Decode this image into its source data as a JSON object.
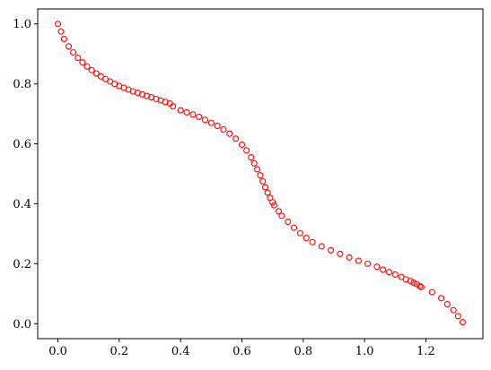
{
  "chart_data": {
    "type": "scatter",
    "color": "#ff0000",
    "x": [
      0,
      0.01,
      0.02,
      0.035,
      0.05,
      0.065,
      0.08,
      0.095,
      0.11,
      0.125,
      0.14,
      0.155,
      0.17,
      0.185,
      0.2,
      0.215,
      0.23,
      0.245,
      0.26,
      0.275,
      0.29,
      0.305,
      0.32,
      0.335,
      0.35,
      0.365,
      0.375,
      0.4,
      0.42,
      0.44,
      0.46,
      0.48,
      0.5,
      0.52,
      0.54,
      0.56,
      0.58,
      0.6,
      0.615,
      0.63,
      0.64,
      0.65,
      0.66,
      0.668,
      0.676,
      0.684,
      0.692,
      0.7,
      0.705,
      0.72,
      0.73,
      0.75,
      0.77,
      0.79,
      0.81,
      0.83,
      0.86,
      0.89,
      0.92,
      0.95,
      0.98,
      1.01,
      1.04,
      1.06,
      1.08,
      1.1,
      1.12,
      1.135,
      1.15,
      1.16,
      1.17,
      1.18,
      1.185,
      1.22,
      1.25,
      1.27,
      1.29,
      1.305,
      1.32
    ],
    "y": [
      1.0,
      0.975,
      0.95,
      0.925,
      0.905,
      0.887,
      0.872,
      0.858,
      0.846,
      0.835,
      0.825,
      0.816,
      0.808,
      0.8,
      0.793,
      0.787,
      0.781,
      0.775,
      0.77,
      0.765,
      0.76,
      0.755,
      0.75,
      0.745,
      0.74,
      0.735,
      0.725,
      0.712,
      0.705,
      0.698,
      0.69,
      0.68,
      0.67,
      0.66,
      0.648,
      0.634,
      0.617,
      0.597,
      0.578,
      0.555,
      0.535,
      0.515,
      0.495,
      0.475,
      0.455,
      0.437,
      0.42,
      0.405,
      0.395,
      0.375,
      0.36,
      0.34,
      0.32,
      0.302,
      0.286,
      0.272,
      0.258,
      0.245,
      0.233,
      0.221,
      0.21,
      0.2,
      0.19,
      0.18,
      0.172,
      0.164,
      0.156,
      0.148,
      0.142,
      0.137,
      0.132,
      0.126,
      0.122,
      0.105,
      0.085,
      0.065,
      0.045,
      0.025,
      0.005
    ],
    "xlim": [
      -0.066,
      1.386
    ],
    "ylim": [
      -0.05,
      1.05
    ],
    "xticks": [
      {
        "value": 0,
        "label": "0.0"
      },
      0.2,
      0.4,
      0.6,
      0.8,
      {
        "value": 1,
        "label": "1.0"
      },
      1.2
    ],
    "yticks": [
      {
        "value": 0,
        "label": "0.0"
      },
      0.2,
      0.4,
      0.6,
      0.8,
      {
        "value": 1,
        "label": "1.0"
      }
    ]
  }
}
